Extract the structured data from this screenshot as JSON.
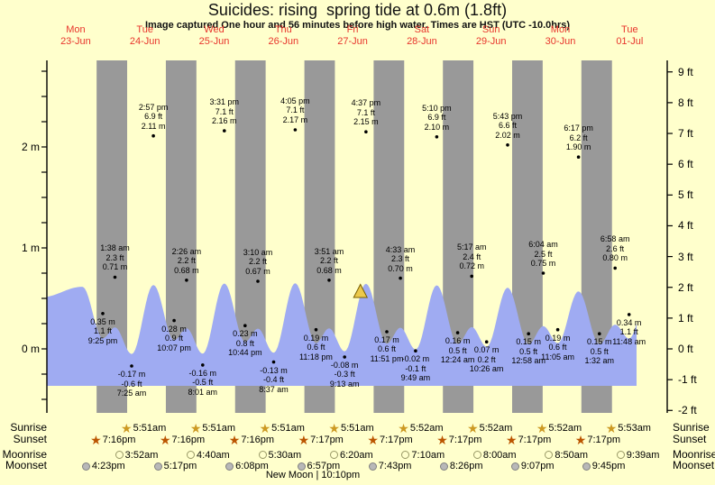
{
  "title": "Suicides: rising  spring tide at 0.6m (1.8ft)",
  "subtitle": "Image captured One hour and 56 minutes before high water. Times are HST (UTC -10.0hrs)",
  "colors": {
    "background": "#ffffcc",
    "night_band": "#999999",
    "tide_fill": "#9fabf2",
    "day_label_red": "#e8352c",
    "axis_black": "#000000",
    "sunrise_star": "#cc9922",
    "sunset_star": "#bb5500",
    "moonrise_fill": "#ffffcc",
    "moonrise_edge": "#999966",
    "moonset_fill": "#b8b8b8",
    "moonset_edge": "#808080",
    "marker_fill": "#ecc94b",
    "marker_edge": "#7a6000"
  },
  "days": [
    {
      "name": "Mon",
      "date": "23-Jun"
    },
    {
      "name": "Tue",
      "date": "24-Jun"
    },
    {
      "name": "Wed",
      "date": "25-Jun"
    },
    {
      "name": "Thu",
      "date": "26-Jun"
    },
    {
      "name": "Fri",
      "date": "27-Jun"
    },
    {
      "name": "Sat",
      "date": "28-Jun"
    },
    {
      "name": "Sun",
      "date": "29-Jun"
    },
    {
      "name": "Mon",
      "date": "30-Jun"
    },
    {
      "name": "Tue",
      "date": "01-Jul"
    }
  ],
  "chart_data": {
    "type": "area",
    "title": "Suicides: rising  spring tide at 0.6m (1.8ft)",
    "categories": [
      "Mon 23-Jun",
      "Tue 24-Jun",
      "Wed 25-Jun",
      "Thu 26-Jun",
      "Fri 27-Jun",
      "Sat 28-Jun",
      "Sun 29-Jun",
      "Mon 30-Jun",
      "Tue 01-Jul"
    ],
    "ylabel_left_unit": "m",
    "ylabel_right_unit": "ft",
    "y_left_labels": [
      "2 m",
      "1 m",
      "0 m"
    ],
    "y_left_values": [
      2,
      1,
      0
    ],
    "y_right_labels": [
      "9 ft",
      "8 ft",
      "7 ft",
      "6 ft",
      "5 ft",
      "4 ft",
      "3 ft",
      "2 ft",
      "1 ft",
      "0 ft",
      "-1 ft",
      "-2 ft"
    ],
    "y_right_values": [
      9,
      8,
      7,
      6,
      5,
      4,
      3,
      2,
      1,
      0,
      -1,
      -2
    ],
    "grid": false,
    "day_band_color_day": "#ffffcc",
    "day_band_color_night": "#999999",
    "tide_events": [
      {
        "day": 0,
        "type": "Low",
        "time": "9:25 pm",
        "ft": "1.1 ft",
        "m": "0.35 m"
      },
      {
        "day": 1,
        "type": "High",
        "time": "1:38 am",
        "ft": "2.3 ft",
        "m": "0.71 m"
      },
      {
        "day": 1,
        "type": "Low",
        "time": "7:25 am",
        "ft": "-0.6 ft",
        "m": "-0.17 m"
      },
      {
        "day": 1,
        "type": "High",
        "time": "2:57 pm",
        "ft": "6.9 ft",
        "m": "2.11 m"
      },
      {
        "day": 1,
        "type": "Low",
        "time": "10:07 pm",
        "ft": "0.9 ft",
        "m": "0.28 m"
      },
      {
        "day": 2,
        "type": "High",
        "time": "2:26 am",
        "ft": "2.2 ft",
        "m": "0.68 m"
      },
      {
        "day": 2,
        "type": "Low",
        "time": "8:01 am",
        "ft": "-0.5 ft",
        "m": "-0.16 m"
      },
      {
        "day": 2,
        "type": "High",
        "time": "3:31 pm",
        "ft": "7.1 ft",
        "m": "2.16 m"
      },
      {
        "day": 2,
        "type": "Low",
        "time": "10:44 pm",
        "ft": "0.8 ft",
        "m": "0.23 m"
      },
      {
        "day": 3,
        "type": "High",
        "time": "3:10 am",
        "ft": "2.2 ft",
        "m": "0.67 m"
      },
      {
        "day": 3,
        "type": "Low",
        "time": "8:37 am",
        "ft": "-0.4 ft",
        "m": "-0.13 m"
      },
      {
        "day": 3,
        "type": "High",
        "time": "4:05 pm",
        "ft": "7.1 ft",
        "m": "2.17 m"
      },
      {
        "day": 3,
        "type": "Low",
        "time": "11:18 pm",
        "ft": "0.6 ft",
        "m": "0.19 m"
      },
      {
        "day": 4,
        "type": "High",
        "time": "3:51 am",
        "ft": "2.2 ft",
        "m": "0.68 m"
      },
      {
        "day": 4,
        "type": "Low",
        "time": "9:13 am",
        "ft": "-0.3 ft",
        "m": "-0.08 m"
      },
      {
        "day": 4,
        "type": "High",
        "time": "4:37 pm",
        "ft": "7.1 ft",
        "m": "2.15 m"
      },
      {
        "day": 4,
        "type": "Low",
        "time": "11:51 pm",
        "ft": "0.6 ft",
        "m": "0.17 m"
      },
      {
        "day": 5,
        "type": "High",
        "time": "4:33 am",
        "ft": "2.3 ft",
        "m": "0.70 m"
      },
      {
        "day": 5,
        "type": "Low",
        "time": "9:49 am",
        "ft": "-0.1 ft",
        "m": "-0.02 m"
      },
      {
        "day": 5,
        "type": "High",
        "time": "5:10 pm",
        "ft": "6.9 ft",
        "m": "2.10 m"
      },
      {
        "day": 6,
        "type": "Low",
        "time": "12:24 am",
        "ft": "0.5 ft",
        "m": "0.16 m"
      },
      {
        "day": 6,
        "type": "High",
        "time": "5:17 am",
        "ft": "2.4 ft",
        "m": "0.72 m"
      },
      {
        "day": 6,
        "type": "Low",
        "time": "10:26 am",
        "ft": "0.2 ft",
        "m": "0.07 m"
      },
      {
        "day": 6,
        "type": "High",
        "time": "5:43 pm",
        "ft": "6.6 ft",
        "m": "2.02 m"
      },
      {
        "day": 7,
        "type": "Low",
        "time": "12:58 am",
        "ft": "0.5 ft",
        "m": "0.15 m"
      },
      {
        "day": 7,
        "type": "High",
        "time": "6:04 am",
        "ft": "2.5 ft",
        "m": "0.75 m"
      },
      {
        "day": 7,
        "type": "Low",
        "time": "11:05 am",
        "ft": "0.6 ft",
        "m": "0.19 m"
      },
      {
        "day": 7,
        "type": "High",
        "time": "6:17 pm",
        "ft": "6.2 ft",
        "m": "1.90 m"
      },
      {
        "day": 8,
        "type": "Low",
        "time": "1:32 am",
        "ft": "0.5 ft",
        "m": "0.15 m"
      },
      {
        "day": 8,
        "type": "High",
        "time": "6:58 am",
        "ft": "2.6 ft",
        "m": "0.80 m"
      },
      {
        "day": 8,
        "type": "Low",
        "time": "11:48 am",
        "ft": "1.1 ft",
        "m": "0.34 m"
      }
    ],
    "capture_marker": {
      "shape": "triangle",
      "day": 4,
      "hour": 14.7
    }
  },
  "astro": {
    "sunrise": {
      "label": "Sunrise",
      "icon": "sunrise-star",
      "entries": [
        {
          "day": 1,
          "time": "5:51am"
        },
        {
          "day": 2,
          "time": "5:51am"
        },
        {
          "day": 3,
          "time": "5:51am"
        },
        {
          "day": 4,
          "time": "5:51am"
        },
        {
          "day": 5,
          "time": "5:52am"
        },
        {
          "day": 6,
          "time": "5:52am"
        },
        {
          "day": 7,
          "time": "5:52am"
        },
        {
          "day": 8,
          "time": "5:53am"
        }
      ]
    },
    "sunset": {
      "label": "Sunset",
      "icon": "sunset-star",
      "entries": [
        {
          "day": 0,
          "time": "7:16pm"
        },
        {
          "day": 1,
          "time": "7:16pm"
        },
        {
          "day": 2,
          "time": "7:16pm"
        },
        {
          "day": 3,
          "time": "7:17pm"
        },
        {
          "day": 4,
          "time": "7:17pm"
        },
        {
          "day": 5,
          "time": "7:17pm"
        },
        {
          "day": 6,
          "time": "7:17pm"
        },
        {
          "day": 7,
          "time": "7:17pm"
        }
      ]
    },
    "moonrise": {
      "label": "Moonrise",
      "icon": "moonrise-circle",
      "entries": [
        {
          "day": 1,
          "time": "3:52am"
        },
        {
          "day": 2,
          "time": "4:40am"
        },
        {
          "day": 3,
          "time": "5:30am"
        },
        {
          "day": 4,
          "time": "6:20am"
        },
        {
          "day": 5,
          "time": "7:10am"
        },
        {
          "day": 6,
          "time": "8:00am"
        },
        {
          "day": 7,
          "time": "8:50am"
        },
        {
          "day": 8,
          "time": "9:39am"
        }
      ]
    },
    "moonset": {
      "label": "Moonset",
      "icon": "moonset-circle",
      "entries": [
        {
          "day": 0,
          "time": "4:23pm"
        },
        {
          "day": 1,
          "time": "5:17pm"
        },
        {
          "day": 2,
          "time": "6:08pm"
        },
        {
          "day": 3,
          "time": "6:57pm"
        },
        {
          "day": 4,
          "time": "7:43pm"
        },
        {
          "day": 5,
          "time": "8:26pm"
        },
        {
          "day": 6,
          "time": "9:07pm"
        },
        {
          "day": 7,
          "time": "9:45pm"
        }
      ]
    }
  },
  "new_moon": "New Moon | 10:10pm"
}
